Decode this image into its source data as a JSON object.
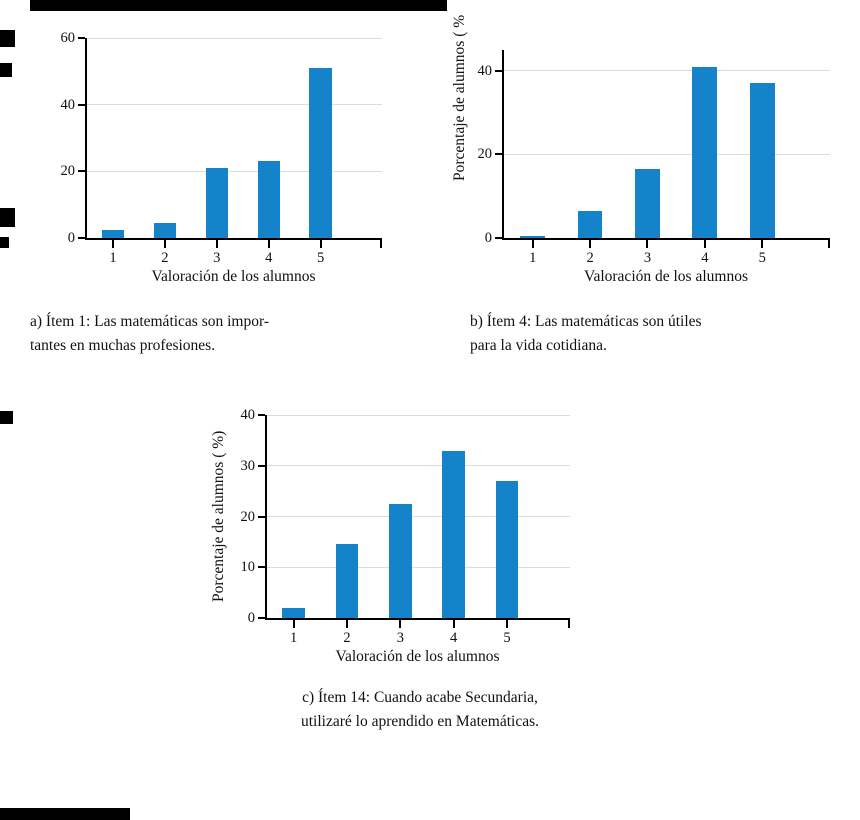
{
  "figure": {
    "bar_color": "#1583c9",
    "axis_color": "#000000",
    "grid_color": "#dcdcdc",
    "background": "#ffffff"
  },
  "chart_data": [
    {
      "id": "a",
      "type": "bar",
      "title": "",
      "categories": [
        "1",
        "2",
        "3",
        "4",
        "5"
      ],
      "values": [
        2.5,
        4.5,
        21,
        23,
        51
      ],
      "xlabel": "Valoración de los alumnos",
      "ylabel": "",
      "yticks": [
        0,
        20,
        40,
        60
      ],
      "ylim": [
        0,
        60
      ],
      "grid": true,
      "legend": "none",
      "caption_lines": [
        "a) Ítem 1: Las matemáticas son impor-",
        "tantes en muchas profesiones."
      ]
    },
    {
      "id": "b",
      "type": "bar",
      "title": "",
      "categories": [
        "1",
        "2",
        "3",
        "4",
        "5"
      ],
      "values": [
        0.5,
        6.5,
        16.5,
        41,
        37
      ],
      "xlabel": "Valoración de los alumnos",
      "ylabel": "Porcentaje de alumnos ( %",
      "yticks": [
        0,
        20,
        40
      ],
      "ylim": [
        0,
        45
      ],
      "grid": true,
      "legend": "none",
      "caption_lines": [
        "b) Ítem 4: Las matemáticas son útiles",
        "para la vida cotidiana."
      ]
    },
    {
      "id": "c",
      "type": "bar",
      "title": "",
      "categories": [
        "1",
        "2",
        "3",
        "4",
        "5"
      ],
      "values": [
        2,
        14.5,
        22.5,
        33,
        27
      ],
      "xlabel": "Valoración de los alumnos",
      "ylabel": "Porcentaje de alumnos ( %)",
      "yticks": [
        0,
        10,
        20,
        30,
        40
      ],
      "ylim": [
        0,
        40
      ],
      "grid": true,
      "legend": "none",
      "caption_lines": [
        "c) Ítem 14: Cuando acabe Secundaria,",
        "utilizaré lo aprendido en Matemáticas."
      ]
    }
  ]
}
